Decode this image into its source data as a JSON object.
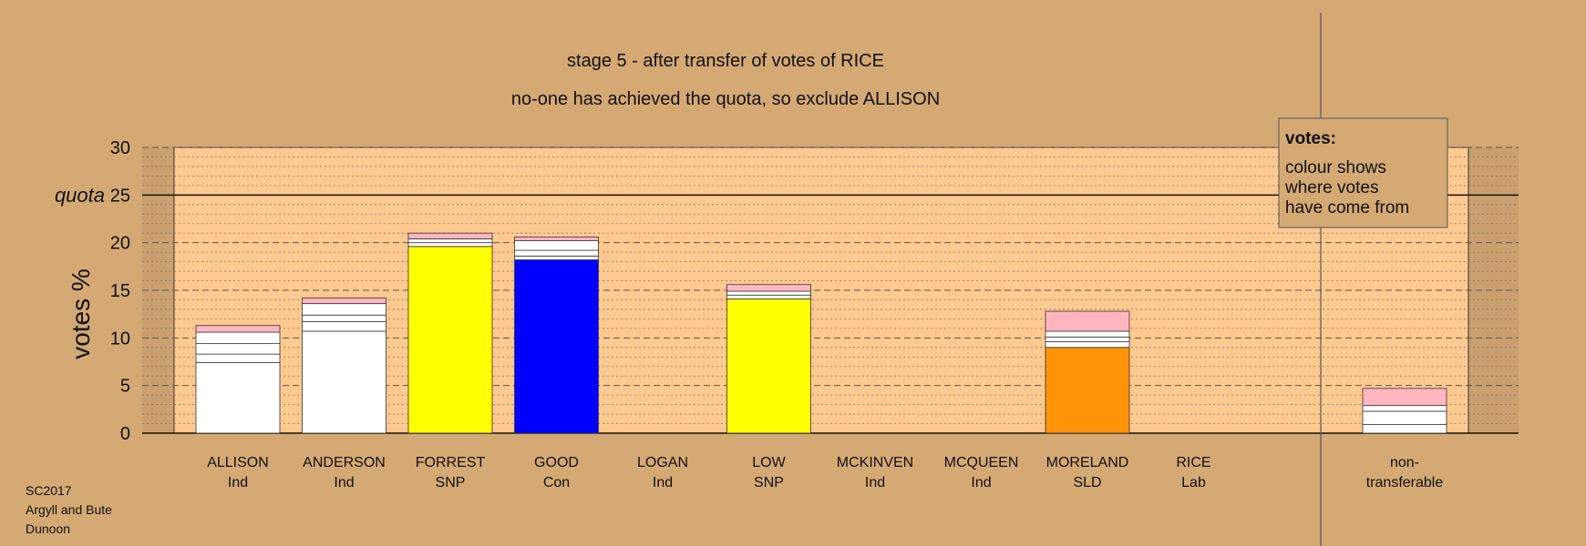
{
  "chart_data": {
    "type": "bar",
    "stacked": true,
    "title": "stage 5 - after transfer of votes of RICE",
    "subtitle": "no-one has achieved the quota, so exclude ALLISON",
    "ylabel": "votes %",
    "ylim": [
      0,
      30
    ],
    "yticks": [
      0,
      5,
      10,
      15,
      20,
      25,
      30
    ],
    "quota": {
      "label": "quota",
      "value": 25
    },
    "grid": "dotted minor, dashed major",
    "categories": [
      {
        "name": "ALLISON",
        "party": "Ind"
      },
      {
        "name": "ANDERSON",
        "party": "Ind"
      },
      {
        "name": "FORREST",
        "party": "SNP"
      },
      {
        "name": "GOOD",
        "party": "Con"
      },
      {
        "name": "LOGAN",
        "party": "Ind"
      },
      {
        "name": "LOW",
        "party": "SNP"
      },
      {
        "name": "MCKINVEN",
        "party": "Ind"
      },
      {
        "name": "MCQUEEN",
        "party": "Ind"
      },
      {
        "name": "MORELAND",
        "party": "SLD"
      },
      {
        "name": "RICE",
        "party": "Lab"
      }
    ],
    "nontransferable": {
      "label_line1": "non-",
      "label_line2": "transferable"
    },
    "stacks": [
      [
        {
          "value": 7.4,
          "color": "#ffffff"
        },
        {
          "value": 0.9,
          "color": "#ffffff"
        },
        {
          "value": 1.1,
          "color": "#ffffff"
        },
        {
          "value": 1.2,
          "color": "#ffffff"
        },
        {
          "value": 0.7,
          "color": "#ffb6c1"
        }
      ],
      [
        {
          "value": 10.7,
          "color": "#ffffff"
        },
        {
          "value": 1.0,
          "color": "#ffffff"
        },
        {
          "value": 0.7,
          "color": "#ffffff"
        },
        {
          "value": 1.2,
          "color": "#ffffff"
        },
        {
          "value": 0.6,
          "color": "#ffb6c1"
        }
      ],
      [
        {
          "value": 19.6,
          "color": "#ffff00"
        },
        {
          "value": 0.4,
          "color": "#ffffff"
        },
        {
          "value": 0.4,
          "color": "#ffffff"
        },
        {
          "value": 0.6,
          "color": "#ffb6c1"
        }
      ],
      [
        {
          "value": 18.2,
          "color": "#0000ff"
        },
        {
          "value": 0.4,
          "color": "#ffffff"
        },
        {
          "value": 0.6,
          "color": "#ffffff"
        },
        {
          "value": 1.0,
          "color": "#ffffff"
        },
        {
          "value": 0.4,
          "color": "#ffb6c1"
        }
      ],
      [],
      [
        {
          "value": 14.1,
          "color": "#ffff00"
        },
        {
          "value": 0.4,
          "color": "#ffffff"
        },
        {
          "value": 0.4,
          "color": "#ffffff"
        },
        {
          "value": 0.7,
          "color": "#ffb6c1"
        }
      ],
      [],
      [],
      [
        {
          "value": 9.0,
          "color": "#ff9408"
        },
        {
          "value": 0.6,
          "color": "#ffffff"
        },
        {
          "value": 0.5,
          "color": "#ffffff"
        },
        {
          "value": 0.6,
          "color": "#ffffff"
        },
        {
          "value": 2.1,
          "color": "#ffb6c1"
        }
      ],
      []
    ],
    "nontransferable_stack": [
      {
        "value": 0.9,
        "color": "#ffffff"
      },
      {
        "value": 1.4,
        "color": "#ffffff"
      },
      {
        "value": 0.6,
        "color": "#ffffff"
      },
      {
        "value": 1.8,
        "color": "#ffb6c1"
      }
    ]
  },
  "legend": {
    "title": "votes:",
    "lines": [
      "colour shows",
      "where votes",
      "have come from"
    ]
  },
  "footer": [
    "SC2017",
    "Argyll and Bute",
    "Dunoon"
  ],
  "colors": {
    "background": "#d4a974",
    "plot_area": "#ffc98f",
    "pink": "#ffb6c1",
    "snp": "#ffff00",
    "con": "#0000ff",
    "sld": "#ff9408",
    "ind": "#ffffff"
  }
}
